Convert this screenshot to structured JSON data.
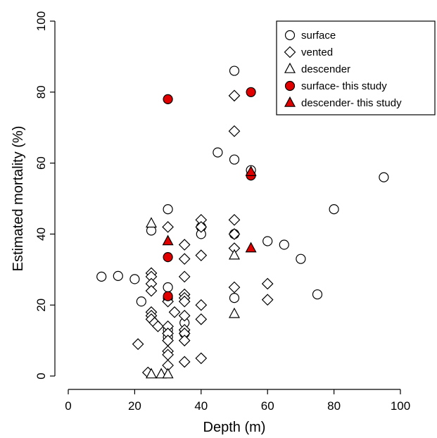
{
  "chart_data": {
    "type": "scatter",
    "xlabel": "Depth (m)",
    "ylabel": "Estimated mortality (%)",
    "xlim": [
      0,
      100
    ],
    "ylim": [
      0,
      100
    ],
    "xticks": [
      0,
      20,
      40,
      60,
      80,
      100
    ],
    "yticks": [
      0,
      20,
      40,
      60,
      80,
      100
    ],
    "legend_position": "top-right",
    "grid": false,
    "series": [
      {
        "name": "surface",
        "marker": "circle",
        "fill": "#ffffff",
        "points": [
          [
            10,
            28
          ],
          [
            15,
            28.2
          ],
          [
            20,
            27.3
          ],
          [
            22,
            21
          ],
          [
            25,
            41
          ],
          [
            30,
            47
          ],
          [
            30,
            25
          ],
          [
            30,
            22
          ],
          [
            30,
            13
          ],
          [
            30,
            11
          ],
          [
            35,
            15
          ],
          [
            35,
            12
          ],
          [
            40,
            42
          ],
          [
            40,
            40
          ],
          [
            45,
            63
          ],
          [
            50,
            86
          ],
          [
            50,
            61
          ],
          [
            50,
            40
          ],
          [
            50,
            22
          ],
          [
            55,
            58
          ],
          [
            60,
            38
          ],
          [
            65,
            37
          ],
          [
            70,
            33
          ],
          [
            75,
            23
          ],
          [
            80,
            47
          ],
          [
            95,
            56
          ]
        ]
      },
      {
        "name": "vented",
        "marker": "diamond",
        "fill": "#ffffff",
        "points": [
          [
            21,
            9
          ],
          [
            24,
            1
          ],
          [
            25,
            29
          ],
          [
            25,
            28
          ],
          [
            25,
            26
          ],
          [
            25,
            24
          ],
          [
            25,
            18
          ],
          [
            25,
            17
          ],
          [
            25,
            16
          ],
          [
            26,
            15
          ],
          [
            27,
            14
          ],
          [
            30,
            42
          ],
          [
            30,
            21
          ],
          [
            30,
            14
          ],
          [
            30,
            12
          ],
          [
            30,
            10
          ],
          [
            30,
            7
          ],
          [
            30,
            6
          ],
          [
            30,
            3
          ],
          [
            32,
            18
          ],
          [
            35,
            37
          ],
          [
            35,
            33
          ],
          [
            35,
            28
          ],
          [
            35,
            23
          ],
          [
            35,
            22
          ],
          [
            35,
            21
          ],
          [
            35,
            17
          ],
          [
            35,
            13
          ],
          [
            35,
            12
          ],
          [
            35,
            10
          ],
          [
            35,
            4
          ],
          [
            40,
            44
          ],
          [
            40,
            42
          ],
          [
            40,
            34
          ],
          [
            40,
            20
          ],
          [
            40,
            16
          ],
          [
            40,
            5
          ],
          [
            50,
            79
          ],
          [
            50,
            69
          ],
          [
            50,
            44
          ],
          [
            50,
            40
          ],
          [
            50,
            36
          ],
          [
            50,
            25
          ],
          [
            60,
            26
          ],
          [
            60,
            21.5
          ]
        ]
      },
      {
        "name": "descender",
        "marker": "triangle",
        "fill": "#ffffff",
        "points": [
          [
            25,
            43
          ],
          [
            25,
            0.5
          ],
          [
            28,
            0.5
          ],
          [
            30,
            0.5
          ],
          [
            50,
            34
          ],
          [
            50,
            17.5
          ]
        ]
      },
      {
        "name": "surface- this study",
        "marker": "circle",
        "fill": "#e00000",
        "points": [
          [
            30,
            78
          ],
          [
            55,
            80
          ],
          [
            30,
            33.5
          ],
          [
            55,
            56.5
          ],
          [
            30,
            22.5
          ]
        ]
      },
      {
        "name": "descender- this study",
        "marker": "triangle",
        "fill": "#e00000",
        "points": [
          [
            30,
            38
          ],
          [
            55,
            36
          ],
          [
            55,
            57.5
          ]
        ]
      }
    ]
  }
}
